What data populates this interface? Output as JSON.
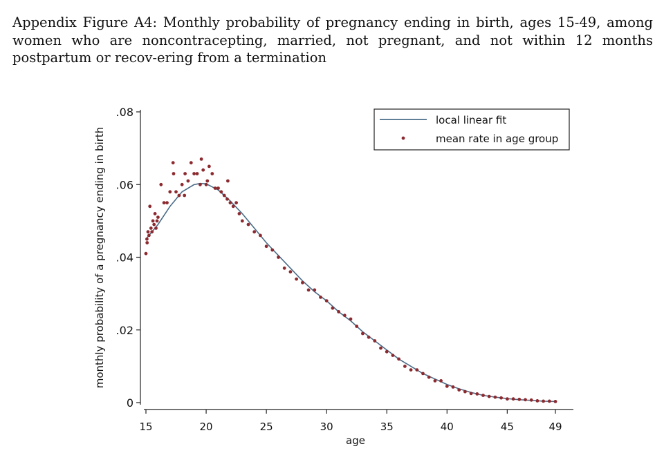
{
  "caption": "Appendix Figure A4: Monthly probability of pregnancy ending in birth, ages 15-49, among women who are noncontracepting, married, not pregnant, and not within 12 months postpartum or recov-ering from a termination",
  "colors": {
    "fit_line": "#4a6b86",
    "points": "#8c2a2f",
    "axis": "#222222"
  },
  "chart_data": {
    "type": "scatter",
    "xlabel": "age",
    "ylabel": "monthly probability of a pregnancy ending in birth",
    "xlim": [
      15,
      49
    ],
    "ylim": [
      0,
      0.08
    ],
    "x_ticks": [
      15,
      20,
      25,
      30,
      35,
      40,
      45,
      49
    ],
    "x_tick_labels": [
      "15",
      "20",
      "25",
      "30",
      "35",
      "40",
      "45",
      "49"
    ],
    "y_ticks": [
      0,
      0.02,
      0.04,
      0.06,
      0.08
    ],
    "y_tick_labels": [
      "0",
      ".02",
      ".04",
      ".06",
      ".08"
    ],
    "grid": false,
    "legend_position": "top-right",
    "series": [
      {
        "name": "local linear fit",
        "kind": "line",
        "x": [
          15,
          16,
          17,
          18,
          19,
          19.5,
          20,
          21,
          22,
          23,
          24,
          25,
          26,
          27,
          28,
          29,
          30,
          31,
          32,
          33,
          34,
          35,
          36,
          37,
          38,
          39,
          40,
          41,
          42,
          43,
          44,
          45,
          46,
          47,
          48,
          49
        ],
        "y": [
          0.045,
          0.049,
          0.054,
          0.058,
          0.06,
          0.0603,
          0.0602,
          0.0585,
          0.0555,
          0.052,
          0.048,
          0.044,
          0.0405,
          0.037,
          0.0335,
          0.0305,
          0.028,
          0.025,
          0.0225,
          0.0195,
          0.017,
          0.0145,
          0.012,
          0.01,
          0.008,
          0.0065,
          0.005,
          0.0038,
          0.0028,
          0.002,
          0.0015,
          0.0011,
          0.0008,
          0.0006,
          0.0004,
          0.0003
        ]
      },
      {
        "name": "mean rate in age group",
        "kind": "scatter",
        "x": [
          15,
          15.08,
          15.17,
          15.25,
          15.33,
          15.42,
          15.5,
          15.58,
          15.67,
          15.75,
          15.83,
          15.92,
          16,
          16.25,
          16.5,
          16.75,
          17,
          17.25,
          17.5,
          17.75,
          18,
          18.25,
          18.5,
          18.75,
          19,
          19.25,
          19.5,
          19.75,
          20,
          20.25,
          20.5,
          20.75,
          21,
          21.25,
          21.5,
          21.75,
          22,
          22.25,
          22.5,
          22.75,
          23,
          23.5,
          24,
          24.5,
          25,
          25.5,
          26,
          26.5,
          27,
          27.5,
          28,
          28.5,
          29,
          29.5,
          30,
          30.5,
          31,
          31.5,
          32,
          32.5,
          33,
          33.5,
          34,
          34.5,
          35,
          35.5,
          36,
          36.5,
          37,
          37.5,
          38,
          38.5,
          39,
          39.5,
          40,
          40.5,
          41,
          41.5,
          42,
          42.5,
          43,
          43.5,
          44,
          44.5,
          45,
          45.5,
          46,
          46.5,
          47,
          47.5,
          48,
          48.5,
          49,
          17.3,
          19.6,
          21.8,
          15.1,
          18.2,
          20.1
        ],
        "y": [
          0.041,
          0.045,
          0.047,
          0.046,
          0.054,
          0.048,
          0.047,
          0.05,
          0.049,
          0.052,
          0.048,
          0.05,
          0.051,
          0.06,
          0.055,
          0.055,
          0.058,
          0.066,
          0.058,
          0.057,
          0.06,
          0.063,
          0.061,
          0.066,
          0.063,
          0.063,
          0.06,
          0.064,
          0.06,
          0.065,
          0.063,
          0.059,
          0.059,
          0.058,
          0.057,
          0.056,
          0.055,
          0.054,
          0.055,
          0.052,
          0.05,
          0.049,
          0.047,
          0.046,
          0.043,
          0.042,
          0.04,
          0.037,
          0.036,
          0.034,
          0.033,
          0.031,
          0.031,
          0.029,
          0.028,
          0.026,
          0.025,
          0.024,
          0.023,
          0.021,
          0.019,
          0.018,
          0.017,
          0.015,
          0.014,
          0.013,
          0.012,
          0.01,
          0.009,
          0.009,
          0.008,
          0.007,
          0.006,
          0.006,
          0.0045,
          0.0043,
          0.0035,
          0.003,
          0.0025,
          0.0024,
          0.002,
          0.0017,
          0.0015,
          0.0013,
          0.001,
          0.001,
          0.0009,
          0.0008,
          0.0007,
          0.0005,
          0.0004,
          0.0004,
          0.0003,
          0.063,
          0.067,
          0.061,
          0.044,
          0.057,
          0.061
        ]
      }
    ]
  }
}
